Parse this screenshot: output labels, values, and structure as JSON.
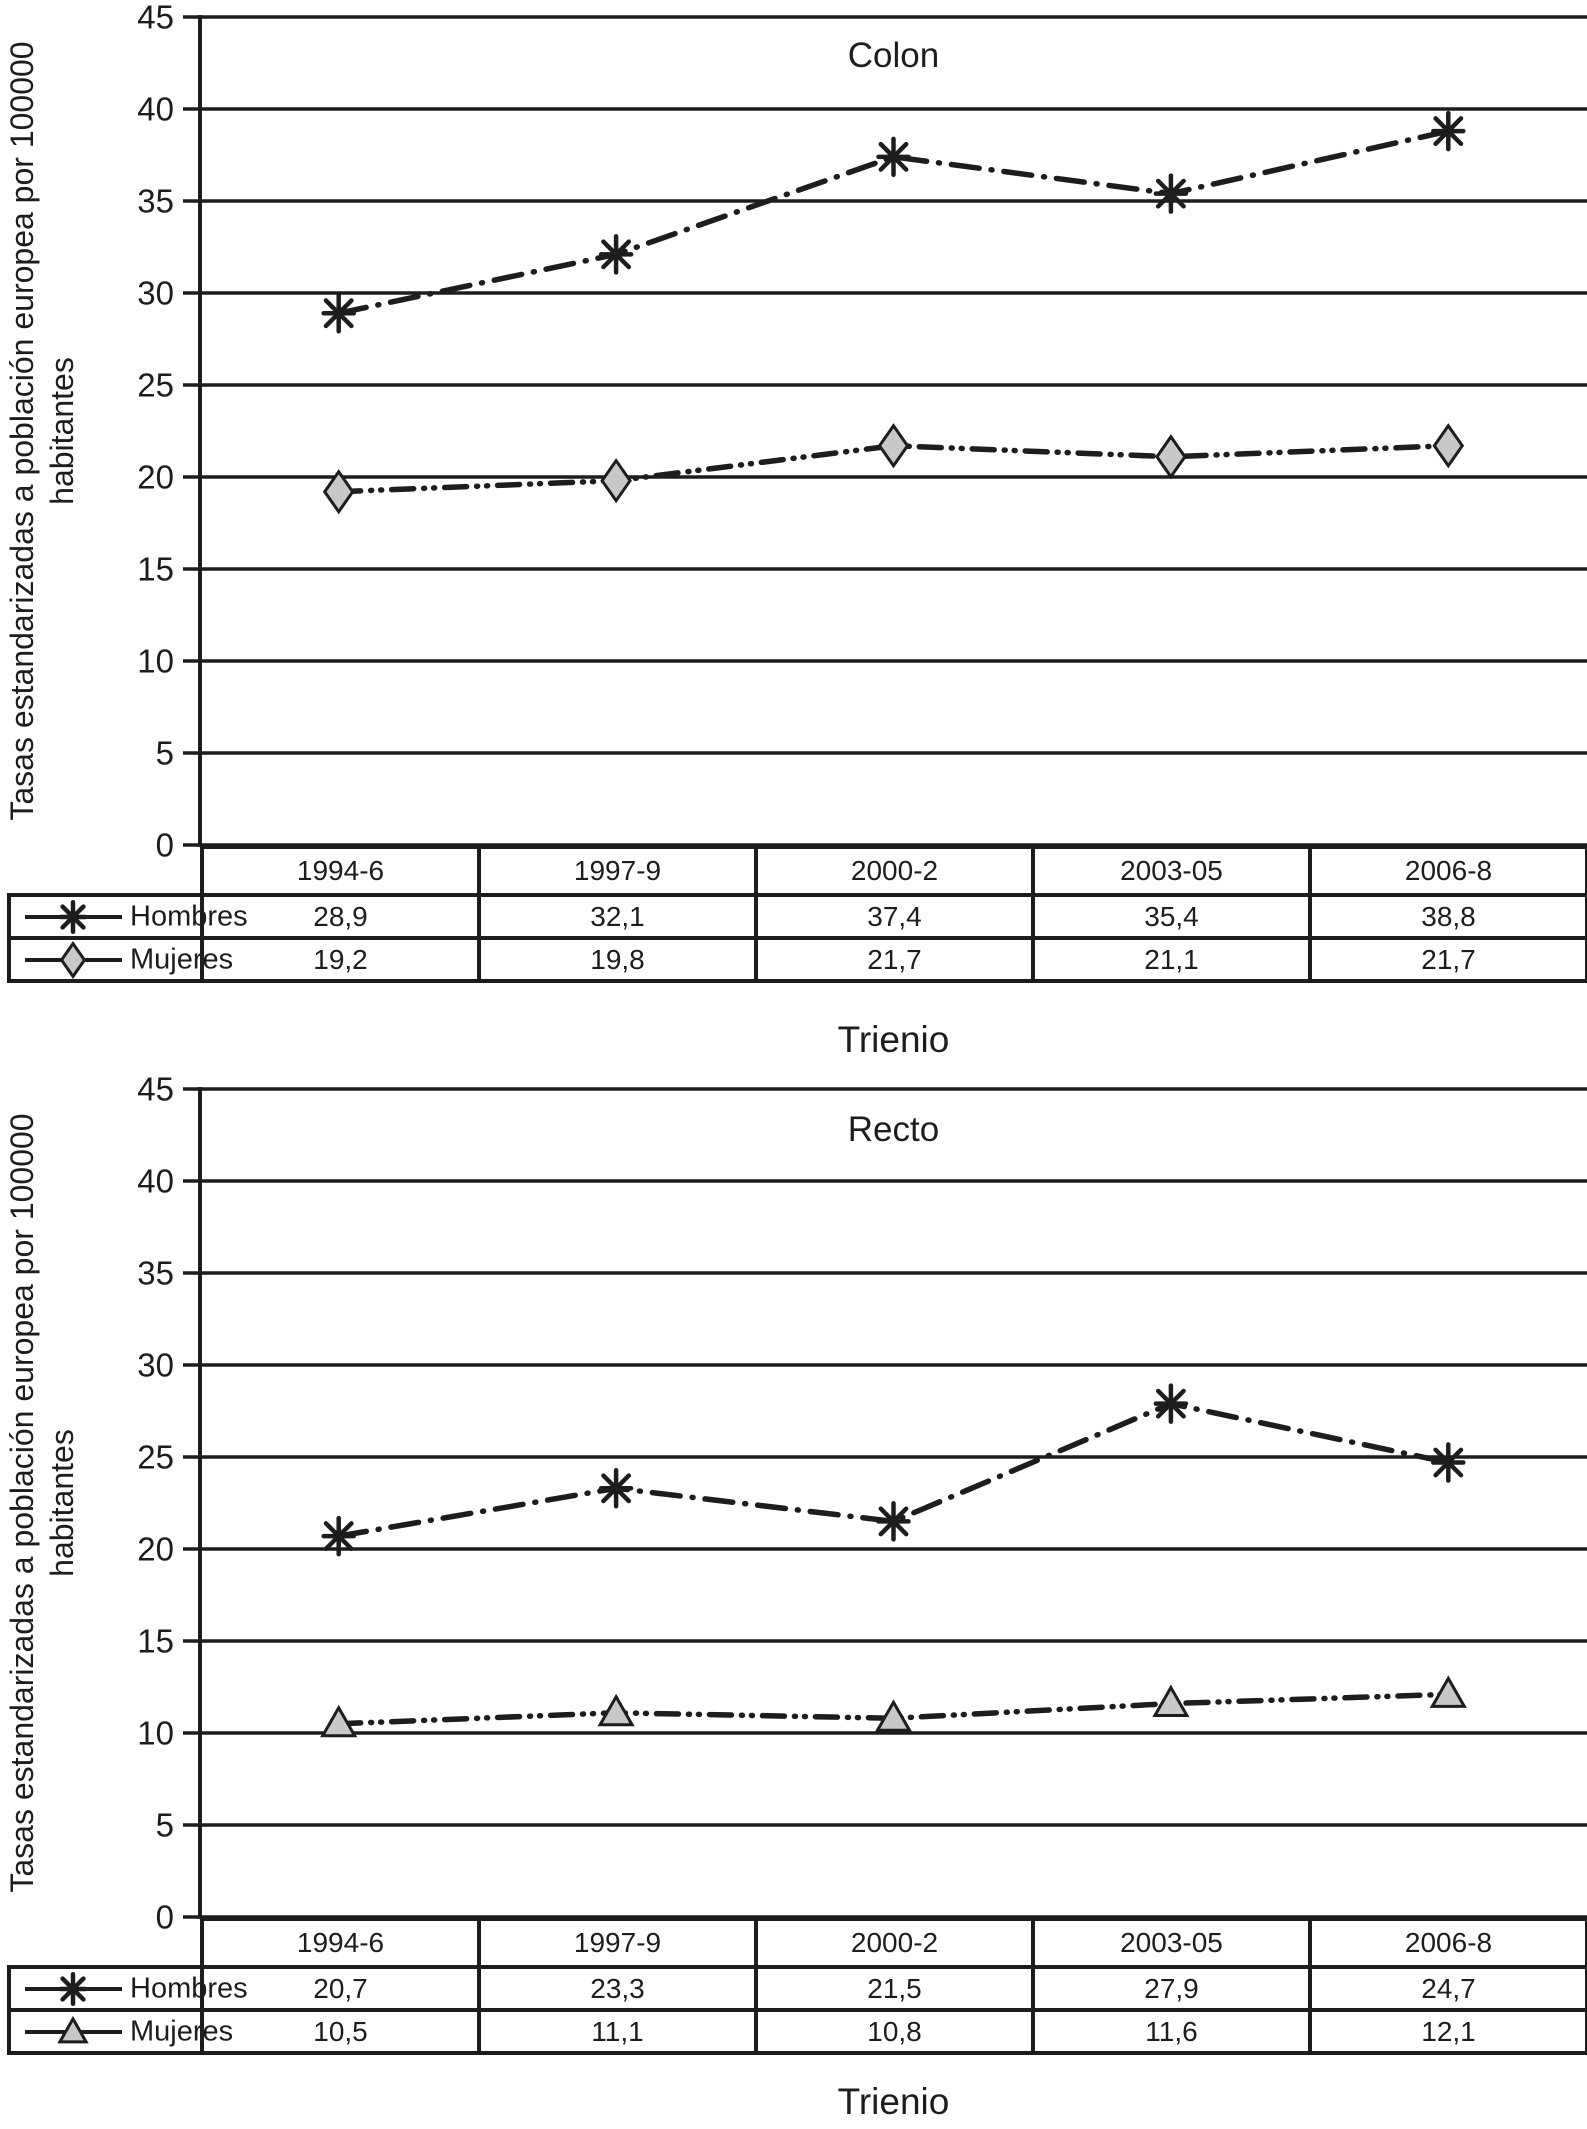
{
  "figure": {
    "background": "#ffffff",
    "ink_color": "#1d1d1b",
    "marker_fill": "#c8c8c8"
  },
  "chart_data": [
    {
      "type": "line",
      "title": "Colon",
      "xlabel": "Trienio",
      "ylabel": "Tasas estandarizadas a población europea por 100000 habitantes",
      "ylim": [
        0,
        45
      ],
      "yticks": [
        45,
        40,
        35,
        30,
        25,
        20,
        15,
        10,
        5,
        0
      ],
      "grid": true,
      "legend_position": "table-left",
      "categories": [
        "1994-6",
        "1997-9",
        "2000-2",
        "2003-05",
        "2006-8"
      ],
      "series": [
        {
          "name": "Hombres",
          "marker": "asterisk",
          "linestyle": "dash-dot",
          "values": [
            28.9,
            32.1,
            37.4,
            35.4,
            38.8
          ],
          "values_display": [
            "28,9",
            "32,1",
            "37,4",
            "35,4",
            "38,8"
          ]
        },
        {
          "name": "Mujeres",
          "marker": "diamond",
          "linestyle": "dash-dot-dot",
          "values": [
            19.2,
            19.8,
            21.7,
            21.1,
            21.7
          ],
          "values_display": [
            "19,2",
            "19,8",
            "21,7",
            "21,1",
            "21,7"
          ]
        }
      ]
    },
    {
      "type": "line",
      "title": "Recto",
      "xlabel": "Trienio",
      "ylabel": "Tasas estandarizadas a población europea por 100000 habitantes",
      "ylim": [
        0,
        45
      ],
      "yticks": [
        45,
        40,
        35,
        30,
        25,
        20,
        15,
        10,
        5,
        0
      ],
      "grid": true,
      "legend_position": "table-left",
      "categories": [
        "1994-6",
        "1997-9",
        "2000-2",
        "2003-05",
        "2006-8"
      ],
      "series": [
        {
          "name": "Hombres",
          "marker": "asterisk",
          "linestyle": "dash-dot",
          "values": [
            20.7,
            23.3,
            21.5,
            27.9,
            24.7
          ],
          "values_display": [
            "20,7",
            "23,3",
            "21,5",
            "27,9",
            "24,7"
          ]
        },
        {
          "name": "Mujeres",
          "marker": "triangle",
          "linestyle": "dash-dot-dot",
          "values": [
            10.5,
            11.1,
            10.8,
            11.6,
            12.1
          ],
          "values_display": [
            "10,5",
            "11,1",
            "10,8",
            "11,6",
            "12,1"
          ]
        }
      ]
    }
  ]
}
